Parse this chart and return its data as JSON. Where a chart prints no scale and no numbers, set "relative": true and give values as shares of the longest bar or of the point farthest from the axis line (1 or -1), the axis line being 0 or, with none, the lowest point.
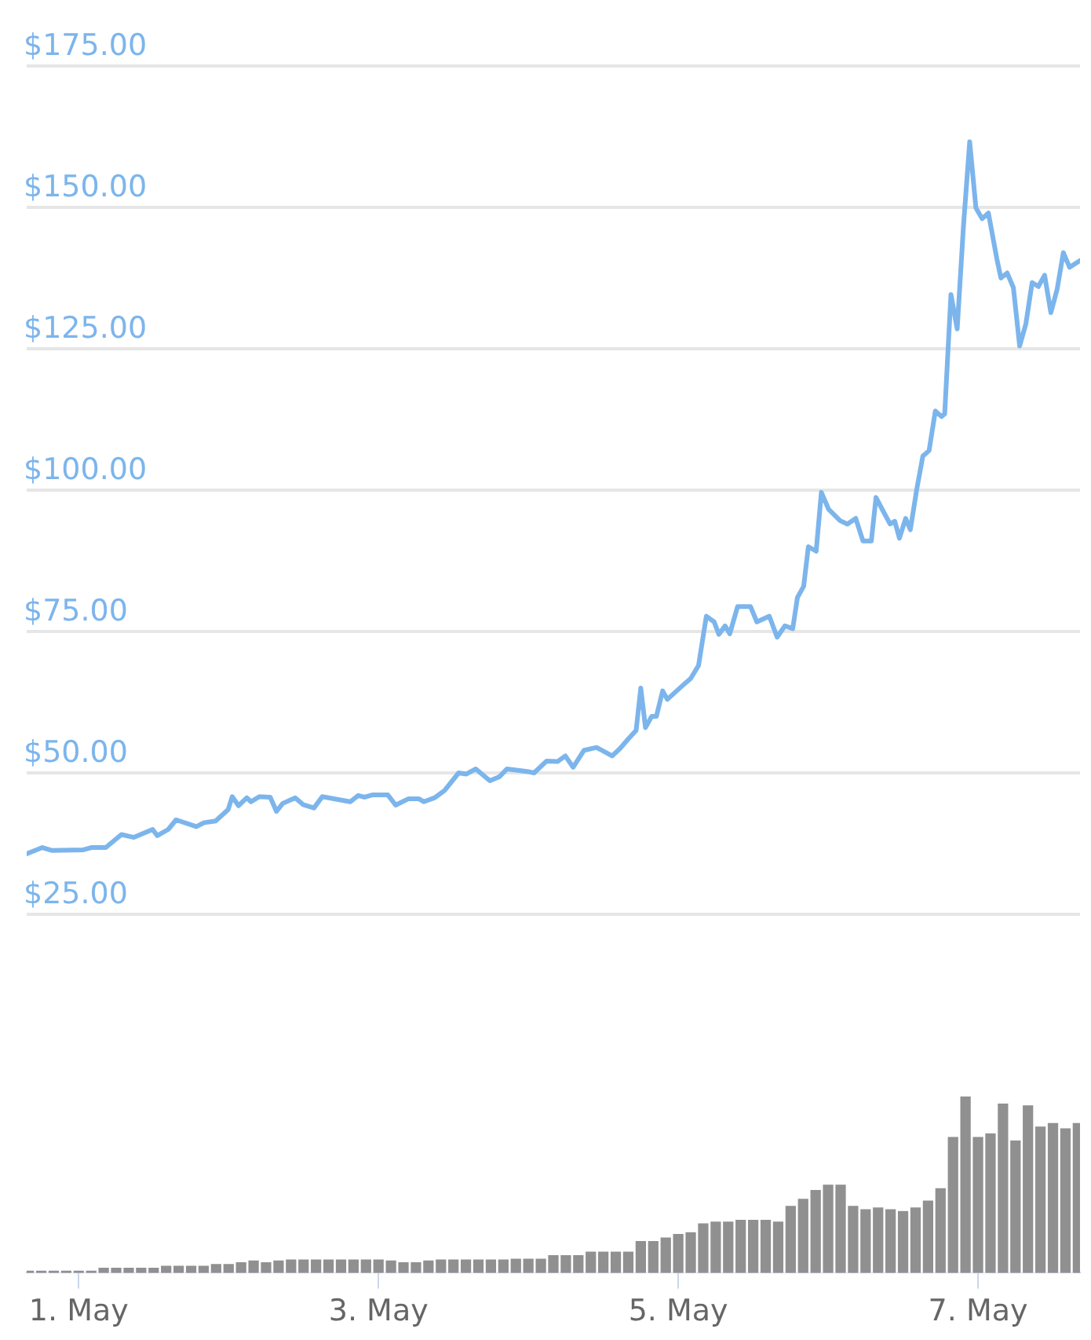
{
  "chart_data": [
    {
      "type": "line",
      "xlim": [
        "--04-30T15:40",
        "--05-07T16:20"
      ],
      "ylim": [
        25,
        175
      ],
      "yticks": [
        {
          "value": 25,
          "label": "$25.00"
        },
        {
          "value": 50,
          "label": "$50.00"
        },
        {
          "value": 75,
          "label": "$75.00"
        },
        {
          "value": 100,
          "label": "$100.00"
        },
        {
          "value": 125,
          "label": "$125.00"
        },
        {
          "value": 150,
          "label": "$150.00"
        },
        {
          "value": 175,
          "label": "$175.00"
        }
      ],
      "tick_labels": "y",
      "grid": "y",
      "legend": false,
      "marker": "none",
      "series": [
        {
          "color": "#7cb5ec",
          "x": [
            "--04-30T15:40",
            "--04-30T18:10",
            "--04-30T19:40",
            "--05-01T00:45",
            "--05-01T02:00",
            "--05-01T04:20",
            "--05-01T06:50",
            "--05-01T08:50",
            "--05-01T11:50",
            "--05-01T12:35",
            "--05-01T14:20",
            "--05-01T15:35",
            "--05-01T18:50",
            "--05-01T20:05",
            "--05-01T21:55",
            "--05-01T23:55",
            "--05-02T00:35",
            "--05-02T01:35",
            "--05-02T02:55",
            "--05-02T03:35",
            "--05-02T04:55",
            "--05-02T06:40",
            "--05-02T07:40",
            "--05-02T08:40",
            "--05-02T10:40",
            "--05-02T11:55",
            "--05-02T13:40",
            "--05-02T15:00",
            "--05-02T19:30",
            "--05-02T20:45",
            "--05-02T21:45",
            "--05-02T23:00",
            "--05-03T01:30",
            "--05-03T02:45",
            "--05-03T04:45",
            "--05-03T06:30",
            "--05-03T07:15",
            "--05-03T09:00",
            "--05-03T10:35",
            "--05-03T12:50",
            "--05-03T14:05",
            "--05-03T15:35",
            "--05-03T17:50",
            "--05-03T19:20",
            "--05-03T20:35",
            "--05-04T00:05",
            "--05-04T00:55",
            "--05-04T02:55",
            "--05-04T04:40",
            "--05-04T05:55",
            "--05-04T07:10",
            "--05-04T08:55",
            "--05-04T10:55",
            "--05-04T13:25",
            "--05-04T14:40",
            "--05-04T16:00",
            "--05-04T17:15",
            "--05-04T18:00",
            "--05-04T18:45",
            "--05-04T19:45",
            "--05-04T20:30",
            "--05-04T21:30",
            "--05-04T22:15",
            "--05-05T00:45",
            "--05-05T02:00",
            "--05-05T03:15",
            "--05-05T04:30",
            "--05-05T05:45",
            "--05-05T06:30",
            "--05-05T07:30",
            "--05-05T08:15",
            "--05-05T09:30",
            "--05-05T11:35",
            "--05-05T12:35",
            "--05-05T14:35",
            "--05-05T15:50",
            "--05-05T17:05",
            "--05-05T18:20",
            "--05-05T19:05",
            "--05-05T20:05",
            "--05-05T20:50",
            "--05-05T22:05",
            "--05-05T22:55",
            "--05-06T00:05",
            "--05-06T01:55",
            "--05-06T03:05",
            "--05-06T04:25",
            "--05-06T05:35",
            "--05-06T06:55",
            "--05-06T07:40",
            "--05-06T08:40",
            "--05-06T09:55",
            "--05-06T10:40",
            "--05-06T11:25",
            "--05-06T12:25",
            "--05-06T13:10",
            "--05-06T14:10",
            "--05-06T15:10",
            "--05-06T16:10",
            "--05-06T17:10",
            "--05-06T18:10",
            "--05-06T18:40",
            "--05-06T19:40",
            "--05-06T20:40",
            "--05-06T21:40",
            "--05-06T22:40",
            "--05-06T23:40",
            "--05-07T00:40",
            "--05-07T01:40",
            "--05-07T03:00",
            "--05-07T03:40",
            "--05-07T04:40",
            "--05-07T05:40",
            "--05-07T06:40",
            "--05-07T07:40",
            "--05-07T08:40",
            "--05-07T09:40",
            "--05-07T10:40",
            "--05-07T11:40",
            "--05-07T12:40",
            "--05-07T13:40",
            "--05-07T14:40",
            "--05-07T16:20"
          ],
          "values": [
            35.7,
            36.8,
            36.3,
            36.4,
            36.8,
            36.8,
            39.1,
            38.6,
            40.0,
            38.9,
            40.0,
            41.7,
            40.5,
            41.2,
            41.5,
            43.5,
            45.8,
            44.2,
            45.6,
            44.9,
            45.8,
            45.7,
            43.2,
            44.6,
            45.6,
            44.4,
            43.8,
            45.8,
            44.9,
            46.0,
            45.7,
            46.1,
            46.1,
            44.3,
            45.4,
            45.4,
            44.9,
            45.6,
            46.9,
            50.0,
            49.8,
            50.7,
            48.6,
            49.3,
            50.7,
            50.2,
            50.0,
            52.1,
            52.0,
            53.0,
            51.0,
            54.0,
            54.5,
            53.0,
            54.3,
            56.0,
            57.5,
            65.0,
            58.0,
            60.0,
            60.0,
            64.5,
            63.0,
            65.5,
            66.7,
            69.0,
            77.7,
            76.7,
            74.5,
            76.0,
            74.6,
            79.4,
            79.4,
            76.7,
            77.7,
            74.0,
            76.0,
            75.5,
            81.0,
            83.0,
            90.0,
            89.2,
            99.6,
            96.6,
            94.6,
            94.0,
            95.0,
            91.0,
            91.0,
            98.7,
            96.6,
            94.0,
            94.5,
            91.5,
            95.0,
            93.0,
            100.0,
            106.0,
            107.0,
            114.0,
            113.0,
            113.5,
            134.6,
            128.5,
            146.6,
            161.6,
            149.9,
            148.0,
            149.0,
            141.0,
            137.5,
            138.4,
            135.8,
            125.5,
            129.4,
            136.7,
            136.0,
            138.0,
            131.4,
            135.5,
            142.0,
            139.4,
            140.6
          ]
        }
      ]
    },
    {
      "type": "bar",
      "relative": true,
      "xlim": [
        "--04-30T15:40",
        "--05-07T16:20"
      ],
      "xticks": [
        {
          "value": "--05-01",
          "label": "1. May"
        },
        {
          "value": "--05-03",
          "label": "3. May"
        },
        {
          "value": "--05-05",
          "label": "5. May"
        },
        {
          "value": "--05-07",
          "label": "7. May"
        }
      ],
      "tick_labels": "x",
      "legend": false,
      "color": "#909090",
      "x": [
        "--04-30T16:00",
        "--04-30T18:00",
        "--04-30T20:00",
        "--04-30T22:00",
        "--05-01T00:00",
        "--05-01T02:00",
        "--05-01T04:00",
        "--05-01T06:00",
        "--05-01T08:00",
        "--05-01T10:00",
        "--05-01T12:00",
        "--05-01T14:00",
        "--05-01T16:00",
        "--05-01T18:00",
        "--05-01T20:00",
        "--05-01T22:00",
        "--05-02T00:00",
        "--05-02T02:00",
        "--05-02T04:00",
        "--05-02T06:00",
        "--05-02T08:00",
        "--05-02T10:00",
        "--05-02T12:00",
        "--05-02T14:00",
        "--05-02T16:00",
        "--05-02T18:00",
        "--05-02T20:00",
        "--05-02T22:00",
        "--05-03T00:00",
        "--05-03T02:00",
        "--05-03T04:00",
        "--05-03T06:00",
        "--05-03T08:00",
        "--05-03T10:00",
        "--05-03T12:00",
        "--05-03T14:00",
        "--05-03T16:00",
        "--05-03T18:00",
        "--05-03T20:00",
        "--05-03T22:00",
        "--05-04T00:00",
        "--05-04T02:00",
        "--05-04T04:00",
        "--05-04T06:00",
        "--05-04T08:00",
        "--05-04T10:00",
        "--05-04T12:00",
        "--05-04T14:00",
        "--05-04T16:00",
        "--05-04T18:00",
        "--05-04T20:00",
        "--05-04T22:00",
        "--05-05T00:00",
        "--05-05T02:00",
        "--05-05T04:00",
        "--05-05T06:00",
        "--05-05T08:00",
        "--05-05T10:00",
        "--05-05T12:00",
        "--05-05T14:00",
        "--05-05T16:00",
        "--05-05T18:00",
        "--05-05T20:00",
        "--05-05T22:00",
        "--05-06T00:00",
        "--05-06T02:00",
        "--05-06T04:00",
        "--05-06T06:00",
        "--05-06T08:00",
        "--05-06T10:00",
        "--05-06T12:00",
        "--05-06T14:00",
        "--05-06T16:00",
        "--05-06T18:00",
        "--05-06T20:00",
        "--05-06T22:00",
        "--05-07T00:00",
        "--05-07T02:00",
        "--05-07T04:00",
        "--05-07T06:00",
        "--05-07T08:00",
        "--05-07T10:00",
        "--05-07T12:00",
        "--05-07T14:00",
        "--05-07T16:00"
      ],
      "values": [
        0.012,
        0.012,
        0.012,
        0.012,
        0.012,
        0.012,
        0.028,
        0.028,
        0.028,
        0.028,
        0.028,
        0.04,
        0.04,
        0.04,
        0.04,
        0.05,
        0.05,
        0.06,
        0.07,
        0.06,
        0.07,
        0.075,
        0.075,
        0.075,
        0.075,
        0.075,
        0.075,
        0.075,
        0.075,
        0.07,
        0.06,
        0.06,
        0.07,
        0.075,
        0.075,
        0.075,
        0.075,
        0.075,
        0.075,
        0.08,
        0.08,
        0.08,
        0.1,
        0.1,
        0.1,
        0.12,
        0.12,
        0.12,
        0.12,
        0.18,
        0.18,
        0.2,
        0.22,
        0.23,
        0.28,
        0.29,
        0.29,
        0.3,
        0.3,
        0.3,
        0.29,
        0.38,
        0.42,
        0.47,
        0.5,
        0.5,
        0.38,
        0.36,
        0.37,
        0.36,
        0.35,
        0.37,
        0.41,
        0.48,
        0.77,
        1.0,
        0.77,
        0.79,
        0.96,
        0.75,
        0.95,
        0.83,
        0.85,
        0.82,
        0.85
      ]
    }
  ]
}
